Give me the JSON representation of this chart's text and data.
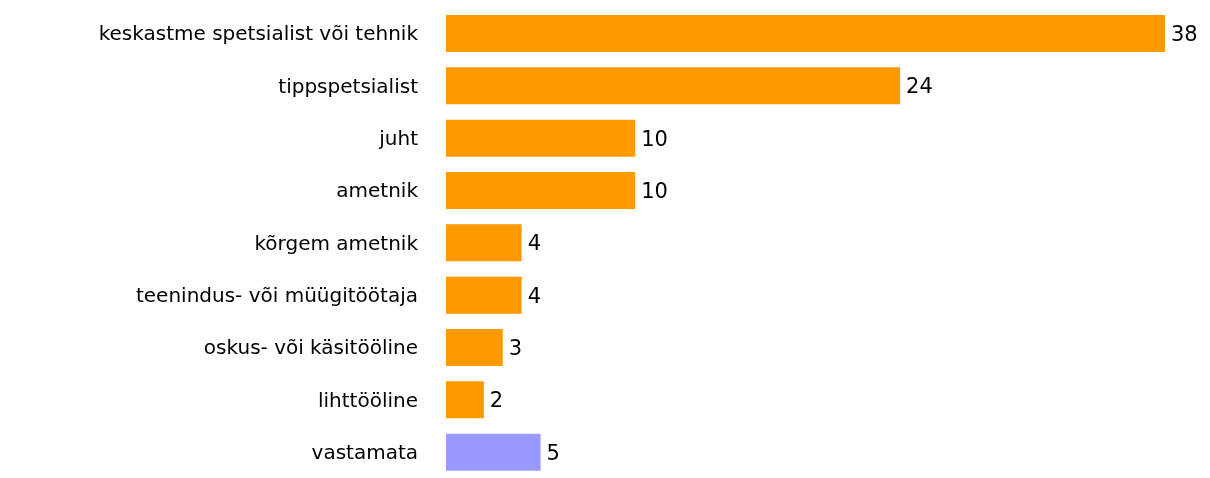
{
  "chart_data": {
    "type": "bar",
    "orientation": "horizontal",
    "categories": [
      "keskastme spetsialist või tehnik",
      "tippspetsialist",
      "juht",
      "ametnik",
      "kõrgem ametnik",
      "teenindus- või müügitöötaja",
      "oskus- või käsitööline",
      "lihttööline",
      "vastamata"
    ],
    "values": [
      38,
      24,
      10,
      10,
      4,
      4,
      3,
      2,
      5
    ],
    "colors": [
      "#ff9900",
      "#ff9900",
      "#ff9900",
      "#ff9900",
      "#ff9900",
      "#ff9900",
      "#ff9900",
      "#ff9900",
      "#9999ff"
    ],
    "data_labels": true,
    "grid": false,
    "legend": false
  }
}
